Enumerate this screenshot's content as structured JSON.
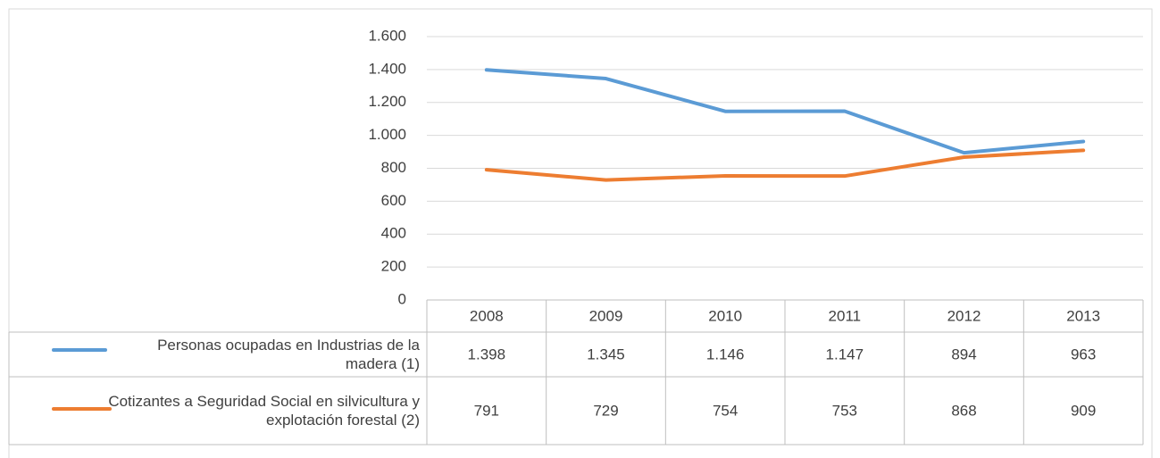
{
  "chart_data": {
    "type": "line",
    "x": [
      "2008",
      "2009",
      "2010",
      "2011",
      "2012",
      "2013"
    ],
    "series": [
      {
        "name": "Personas ocupadas en Industrias de la madera (1)",
        "color": "#5b9bd5",
        "values": [
          1398,
          1345,
          1146,
          1147,
          894,
          963
        ],
        "value_labels": [
          "1.398",
          "1.345",
          "1.146",
          "1.147",
          "894",
          "963"
        ]
      },
      {
        "name": "Cotizantes a Seguridad Social en silvicultura y explotación forestal (2)",
        "color": "#ed7d31",
        "values": [
          791,
          729,
          754,
          753,
          868,
          909
        ]
      }
    ],
    "ylim": [
      0,
      1600
    ],
    "yticks": [
      0,
      200,
      400,
      600,
      800,
      {
        "value": 1000,
        "label": "1.000"
      },
      {
        "value": 1200,
        "label": "1.200"
      },
      {
        "value": 1400,
        "label": "1.400"
      },
      {
        "value": 1600,
        "label": "1.600"
      }
    ],
    "grid": true
  }
}
